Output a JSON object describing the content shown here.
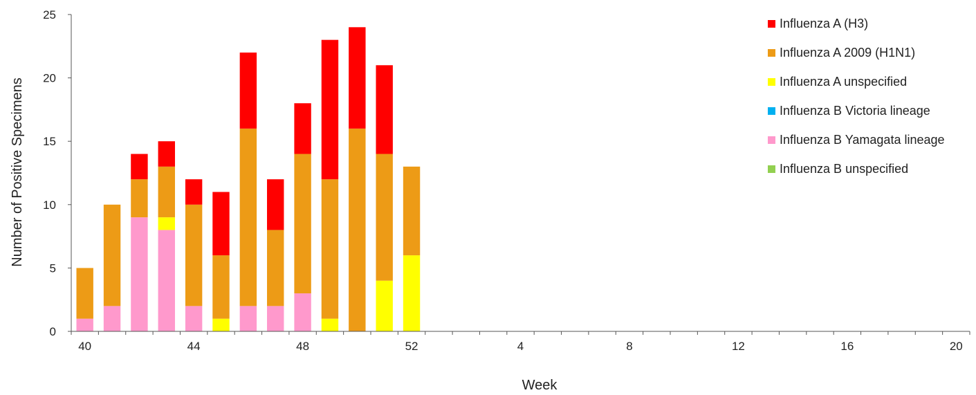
{
  "chart_data": {
    "type": "bar",
    "stacked": true,
    "title": "",
    "xlabel": "Week",
    "ylabel": "Number of Positive Specimens",
    "ylim": [
      0,
      25
    ],
    "yticks": [
      "0",
      "5",
      "10",
      "15",
      "20",
      "25"
    ],
    "categories": [
      "40",
      "41",
      "42",
      "43",
      "44",
      "45",
      "46",
      "47",
      "48",
      "49",
      "50",
      "51",
      "52",
      "1",
      "2",
      "3",
      "4",
      "5",
      "6",
      "7",
      "8",
      "9",
      "10",
      "11",
      "12",
      "13",
      "14",
      "15",
      "16",
      "17",
      "18",
      "19",
      "20"
    ],
    "xtick_labels": [
      "40",
      "44",
      "48",
      "52",
      "4",
      "8",
      "12",
      "16",
      "20"
    ],
    "grid": false,
    "legend_position": "top-right",
    "series": [
      {
        "name": "Influenza B Yamagata lineage",
        "color": "#ff99cc",
        "values": [
          1,
          2,
          9,
          8,
          2,
          0,
          2,
          2,
          3,
          0,
          0,
          0,
          0,
          0,
          0,
          0,
          0,
          0,
          0,
          0,
          0,
          0,
          0,
          0,
          0,
          0,
          0,
          0,
          0,
          0,
          0,
          0,
          0
        ]
      },
      {
        "name": "Influenza A unspecified",
        "color": "#ffff00",
        "values": [
          0,
          0,
          0,
          1,
          0,
          1,
          0,
          0,
          0,
          1,
          0,
          4,
          6,
          0,
          0,
          0,
          0,
          0,
          0,
          0,
          0,
          0,
          0,
          0,
          0,
          0,
          0,
          0,
          0,
          0,
          0,
          0,
          0
        ]
      },
      {
        "name": "Influenza A 2009 (H1N1)",
        "color": "#ed9b16",
        "values": [
          4,
          8,
          3,
          4,
          8,
          5,
          14,
          6,
          11,
          11,
          16,
          10,
          7,
          0,
          0,
          0,
          0,
          0,
          0,
          0,
          0,
          0,
          0,
          0,
          0,
          0,
          0,
          0,
          0,
          0,
          0,
          0,
          0
        ]
      },
      {
        "name": "Influenza A (H3)",
        "color": "#ff0000",
        "values": [
          0,
          0,
          2,
          2,
          2,
          5,
          6,
          4,
          4,
          11,
          8,
          7,
          0,
          0,
          0,
          0,
          0,
          0,
          0,
          0,
          0,
          0,
          0,
          0,
          0,
          0,
          0,
          0,
          0,
          0,
          0,
          0,
          0
        ]
      },
      {
        "name": "Influenza B Victoria lineage",
        "color": "#00b0f0",
        "values": [
          0,
          0,
          0,
          0,
          0,
          0,
          0,
          0,
          0,
          0,
          0,
          0,
          0,
          0,
          0,
          0,
          0,
          0,
          0,
          0,
          0,
          0,
          0,
          0,
          0,
          0,
          0,
          0,
          0,
          0,
          0,
          0,
          0
        ]
      },
      {
        "name": "Influenza B unspecified",
        "color": "#92d050",
        "values": [
          0,
          0,
          0,
          0,
          0,
          0,
          0,
          0,
          0,
          0,
          0,
          0,
          0,
          0,
          0,
          0,
          0,
          0,
          0,
          0,
          0,
          0,
          0,
          0,
          0,
          0,
          0,
          0,
          0,
          0,
          0,
          0,
          0
        ]
      }
    ],
    "legend_order": [
      "Influenza A (H3)",
      "Influenza A 2009 (H1N1)",
      "Influenza A unspecified",
      "Influenza B Victoria lineage",
      "Influenza B Yamagata lineage",
      "Influenza B unspecified"
    ]
  }
}
